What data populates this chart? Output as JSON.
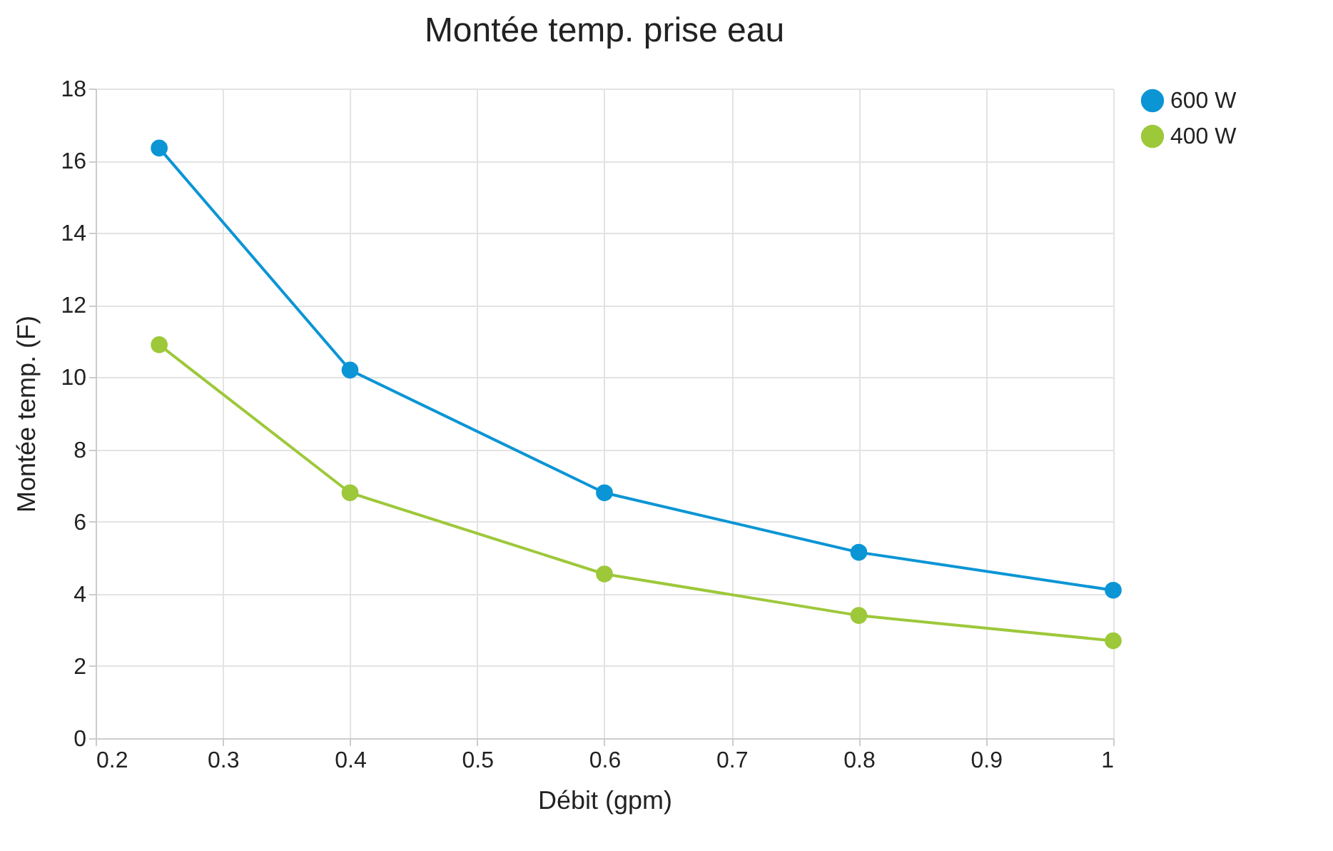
{
  "chart_data": {
    "type": "line",
    "title": "Montée temp. prise eau",
    "xlabel": "Débit (gpm)",
    "ylabel": "Montée temp. (F)",
    "x": [
      0.25,
      0.4,
      0.6,
      0.8,
      1
    ],
    "series": [
      {
        "name": "600 W",
        "color": "#0b95d5",
        "values": [
          16.35,
          10.2,
          6.8,
          5.15,
          4.1
        ]
      },
      {
        "name": "400 W",
        "color": "#9dc83a",
        "values": [
          10.9,
          6.8,
          4.55,
          3.4,
          2.7
        ]
      }
    ],
    "xlim": [
      0.2,
      1
    ],
    "xticks": [
      0.2,
      0.3,
      0.4,
      0.5,
      0.6,
      0.7,
      0.8,
      0.9,
      1
    ],
    "ylim": [
      0,
      18
    ],
    "yticks": [
      0,
      2,
      4,
      6,
      8,
      10,
      12,
      14,
      16,
      18
    ],
    "grid": true,
    "legend": "right",
    "marker": "circle",
    "line_style": "solid"
  }
}
